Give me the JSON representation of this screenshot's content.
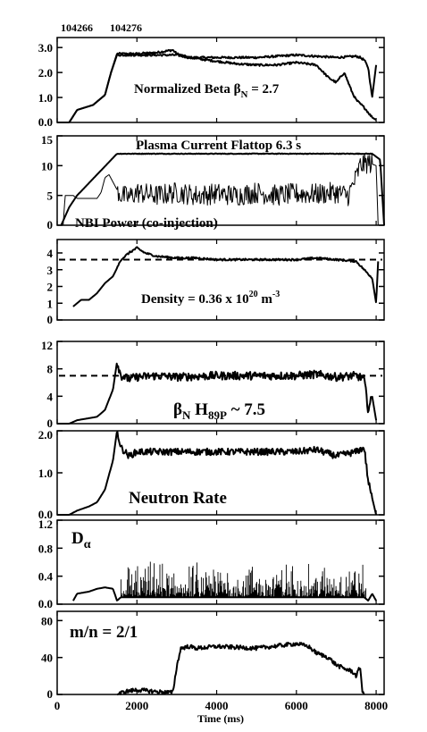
{
  "shots": [
    "104266",
    "104276"
  ],
  "chart_data": [
    {
      "type": "line",
      "ylim": [
        0,
        3.4
      ],
      "yticks": [
        "0.0",
        "1.0",
        "2.0",
        "3.0"
      ],
      "ytick_values": [
        0,
        1,
        2,
        3
      ],
      "annotation": "Normalized Beta",
      "annotation_symbol": "β",
      "annotation_sub": "N",
      "annotation_tail": " = 2.7",
      "series": [
        {
          "x": [
            0,
            300,
            500,
            900,
            1200,
            1350,
            1500,
            2000,
            2500,
            2900,
            3000,
            3300,
            4000,
            4500,
            5000,
            5500,
            6000,
            6500,
            7000,
            7500,
            7600,
            7700,
            7800,
            7900,
            8000
          ],
          "y": [
            0,
            0,
            0.5,
            0.7,
            1.1,
            2.0,
            2.75,
            2.75,
            2.8,
            2.9,
            2.75,
            2.6,
            2.6,
            2.6,
            2.6,
            2.65,
            2.7,
            2.65,
            2.6,
            2.65,
            2.6,
            2.5,
            2.2,
            1.0,
            2.3
          ]
        },
        {
          "x": [
            0,
            300,
            500,
            900,
            1200,
            1350,
            1500,
            2000,
            2500,
            3000,
            3300,
            4000,
            4500,
            5000,
            5500,
            6000,
            6500,
            6800,
            7000,
            7200,
            7400,
            7500,
            7700,
            7900,
            8000
          ],
          "y": [
            0,
            0,
            0.5,
            0.7,
            1.1,
            2.0,
            2.7,
            2.7,
            2.7,
            2.7,
            2.6,
            2.45,
            2.35,
            2.3,
            2.3,
            2.4,
            2.3,
            1.8,
            1.6,
            2.0,
            1.2,
            0.9,
            0.6,
            0.2,
            0.1
          ]
        }
      ]
    },
    {
      "type": "line",
      "ylim": [
        0,
        15
      ],
      "yticks": [
        "0",
        "5",
        "10",
        "15"
      ],
      "ytick_values": [
        0,
        5,
        10,
        15
      ],
      "annotation": "Plasma Current Flattop 6.3 s",
      "annotation2": "NBI Power (co-injection)",
      "series": [
        {
          "name": "",
          "x": [
            100,
            300,
            500,
            1000,
            1500,
            1600,
            3000,
            5000,
            7000,
            7900,
            8100,
            8200
          ],
          "y": [
            0,
            3,
            5,
            8.5,
            12,
            12,
            12,
            12,
            12,
            12,
            11,
            0
          ]
        },
        {
          "name": "",
          "x": [
            150,
            200,
            400,
            500,
            1000,
            1100,
            1200,
            1300,
            1500,
            1600,
            1800,
            2000,
            2500,
            3000,
            3500,
            4000,
            4500,
            5000,
            5500,
            6000,
            6500,
            7000,
            7300,
            7500,
            7600,
            7800,
            8000,
            8050
          ],
          "y": [
            0,
            5,
            5,
            4.5,
            4.5,
            5.5,
            8,
            8.5,
            6,
            5,
            4.7,
            5.5,
            5,
            5.5,
            5,
            5.3,
            5,
            5.5,
            5,
            5.3,
            5.2,
            5.5,
            5,
            8,
            10,
            10.5,
            10,
            0
          ]
        }
      ]
    },
    {
      "type": "line",
      "ylim": [
        0,
        4.8
      ],
      "yticks": [
        "0",
        "1",
        "2",
        "3",
        "4"
      ],
      "ytick_values": [
        0,
        1,
        2,
        3,
        4
      ],
      "annotation": "Density = 0.36 x 10",
      "annotation_sup": "20",
      "annotation_tail": " m",
      "annotation_sup2": "-3",
      "reference_line": 3.6,
      "series": [
        {
          "x": [
            400,
            600,
            800,
            1000,
            1200,
            1400,
            1600,
            1800,
            2000,
            2200,
            2500,
            3000,
            3500,
            4000,
            5000,
            6000,
            6500,
            7000,
            7500,
            7700,
            7900,
            8000,
            8050
          ],
          "y": [
            0.8,
            1.2,
            1.2,
            1.6,
            2.2,
            2.6,
            3.6,
            4.0,
            4.3,
            4.0,
            3.8,
            3.7,
            3.7,
            3.6,
            3.6,
            3.6,
            3.7,
            3.6,
            3.5,
            3.0,
            2.5,
            1.0,
            3.5
          ]
        }
      ]
    },
    {
      "type": "line",
      "ylim": [
        0,
        12
      ],
      "yticks": [
        "0",
        "4",
        "8",
        "12"
      ],
      "ytick_values": [
        0,
        4,
        8,
        12
      ],
      "annotation_symbol": "β",
      "annotation_sub": "N",
      "annotation": " H",
      "annotation_sub2": "89P",
      "annotation_tail": " ~ 7.5",
      "reference_line": 7,
      "series": [
        {
          "x": [
            0,
            300,
            500,
            800,
            1000,
            1200,
            1400,
            1500,
            1600,
            1800,
            2000,
            2500,
            3000,
            4000,
            5000,
            6000,
            6500,
            7000,
            7500,
            7700,
            7800,
            7900,
            8000
          ],
          "y": [
            0,
            0,
            0.5,
            0.8,
            1.0,
            2.0,
            5.0,
            9.0,
            7.0,
            6.5,
            6.8,
            7.0,
            6.8,
            7.0,
            7.0,
            7.0,
            7.2,
            6.8,
            7.0,
            6.5,
            2.0,
            4.0,
            0.5
          ]
        }
      ]
    },
    {
      "type": "line",
      "ylim": [
        0,
        2.0
      ],
      "yticks": [
        "0.0",
        "1.0",
        "2.0"
      ],
      "ytick_values": [
        0,
        1,
        2
      ],
      "annotation": "Neutron Rate",
      "series": [
        {
          "x": [
            0,
            300,
            500,
            800,
            1000,
            1200,
            1400,
            1500,
            1600,
            1800,
            2000,
            3000,
            4000,
            5000,
            6000,
            6500,
            7000,
            7500,
            7700,
            7800,
            7900,
            8000
          ],
          "y": [
            0,
            0,
            0.1,
            0.2,
            0.3,
            0.6,
            1.3,
            2.0,
            1.6,
            1.4,
            1.5,
            1.5,
            1.5,
            1.5,
            1.5,
            1.55,
            1.4,
            1.5,
            1.6,
            0.8,
            0.4,
            0
          ]
        }
      ]
    },
    {
      "type": "line",
      "ylim": [
        0,
        1.2
      ],
      "yticks": [
        "0.0",
        "0.4",
        "0.8",
        "1.2"
      ],
      "ytick_values": [
        0,
        0.4,
        0.8,
        1.2
      ],
      "annotation": "D",
      "annotation_sub": "α",
      "series": [
        {
          "x": [
            400,
            500,
            800,
            1000,
            1200,
            1400,
            1500,
            1600,
            7700,
            7800,
            7900,
            8000
          ],
          "y": [
            0.05,
            0.15,
            0.18,
            0.22,
            0.24,
            0.22,
            0.05,
            0.1,
            0.1,
            0.05,
            0.15,
            0.05
          ]
        }
      ]
    },
    {
      "type": "line",
      "ylim": [
        0,
        90
      ],
      "yticks": [
        "0",
        "40",
        "80"
      ],
      "ytick_values": [
        0,
        40,
        80
      ],
      "xlim": [
        0,
        8200
      ],
      "xticks": [
        "0",
        "2000",
        "4000",
        "6000",
        "8000"
      ],
      "xtick_values": [
        0,
        2000,
        4000,
        6000,
        8000
      ],
      "xlabel": "Time (ms)",
      "annotation": "m/n = 2/1",
      "series": [
        {
          "x": [
            1500,
            1700,
            2000,
            2500,
            2900,
            3000,
            3100,
            3300,
            3500,
            4000,
            5000,
            6000,
            6300,
            6500,
            6800,
            7000,
            7200,
            7400,
            7500,
            7600,
            7650,
            7700
          ],
          "y": [
            0,
            3,
            5,
            3,
            2,
            30,
            50,
            52,
            50,
            52,
            50,
            55,
            52,
            45,
            40,
            32,
            28,
            25,
            20,
            30,
            5,
            0
          ]
        }
      ]
    }
  ]
}
